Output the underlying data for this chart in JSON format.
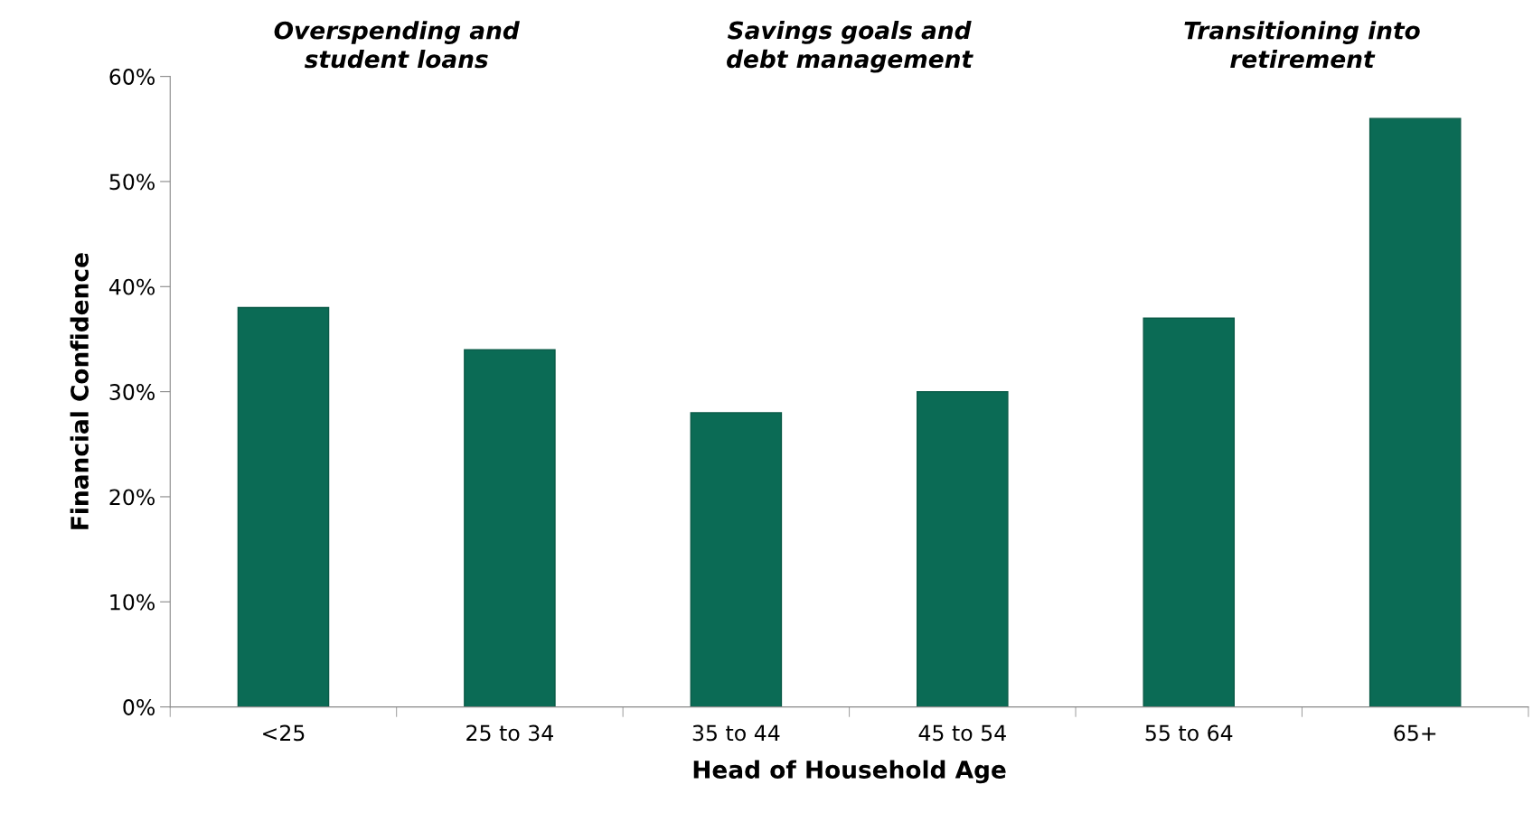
{
  "chart_data": {
    "type": "bar",
    "xlabel": "Head of Household Age",
    "ylabel": "Financial Confidence",
    "categories": [
      "<25",
      "25 to 34",
      "35 to 44",
      "45 to 54",
      "55 to 64",
      "65+"
    ],
    "values": [
      38,
      34,
      28,
      30,
      37,
      56
    ],
    "color": "#0b6b55",
    "ylim": [
      0,
      60
    ],
    "yticks": [
      {
        "value": 0,
        "label": "0%"
      },
      {
        "value": 10,
        "label": "10%"
      },
      {
        "value": 20,
        "label": "20%"
      },
      {
        "value": 30,
        "label": "30%"
      },
      {
        "value": 40,
        "label": "40%"
      },
      {
        "value": 50,
        "label": "50%"
      },
      {
        "value": 60,
        "label": "60%"
      }
    ],
    "annotations": [
      "Overspending and\nstudent loans",
      "Savings goals and\ndebt management",
      "Transitioning into\nretirement"
    ],
    "grid": false,
    "legend": false
  }
}
